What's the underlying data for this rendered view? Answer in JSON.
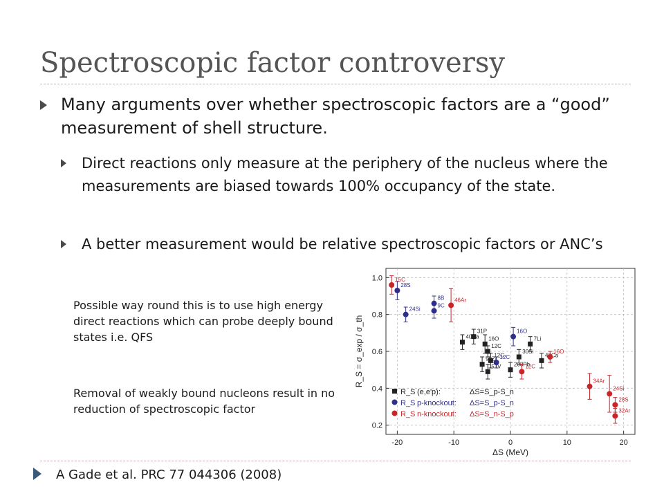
{
  "slide": {
    "title": "Spectroscopic factor controversy",
    "bullet1": "Many arguments over whether spectroscopic factors are a “good” measurement of shell structure.",
    "sub1": "Direct reactions only measure at the periphery of the nucleus where the measurements are biased towards 100% occupancy of the state.",
    "sub2": "A better measurement would be relative spectroscopic factors or ANC’s",
    "note1": "Possible way round this is to use high energy direct reactions which can probe deeply bound states i.e. QFS",
    "note2": "Removal of weakly bound nucleons result in no reduction of spectroscopic factor",
    "reference": "A Gade et al. PRC 77 044306 (2008)"
  },
  "colors": {
    "ee": "#222222",
    "pko": "#2f2f8a",
    "nko": "#c8252b",
    "bullet": "#4a4a4a"
  },
  "chart_data": {
    "type": "scatter",
    "xlabel": "ΔS (MeV)",
    "ylabel": "R_S = σ_exp / σ_th",
    "xlim": [
      -22,
      22
    ],
    "ylim": [
      0.15,
      1.05
    ],
    "xticks": [
      -20,
      -10,
      0,
      10,
      20
    ],
    "xtick_labels": [
      "-20",
      "-10",
      "0",
      "10",
      "20"
    ],
    "yticks": [
      0.2,
      0.4,
      0.6,
      0.8,
      1.0
    ],
    "ytick_labels": [
      "0.2",
      "0.4",
      "0.6",
      "0.8",
      "1.0"
    ],
    "legend": {
      "position": "bottom-left",
      "reaction": "(e,e'p):",
      "entries": [
        {
          "symbol": "R_S",
          "name": "(e,e'p):",
          "delta": "ΔS=S_p-S_n",
          "color": "#222222",
          "marker": "square"
        },
        {
          "symbol": "R_S",
          "name": "p-knockout:",
          "delta": "ΔS=S_p-S_n",
          "color": "#2f2f8a",
          "marker": "circle"
        },
        {
          "symbol": "R_S",
          "name": "n-knockout:",
          "delta": "ΔS=S_n-S_p",
          "color": "#c8252b",
          "marker": "circle"
        }
      ]
    },
    "series": [
      {
        "name": "(e,e'p)",
        "marker": "square",
        "color": "#222222",
        "points": [
          {
            "x": -8.5,
            "y": 0.65,
            "err": 0.04,
            "label": "40Ca"
          },
          {
            "x": -6.5,
            "y": 0.68,
            "err": 0.04,
            "label": "31P"
          },
          {
            "x": -4.5,
            "y": 0.64,
            "err": 0.05,
            "label": "16O"
          },
          {
            "x": -4.0,
            "y": 0.6,
            "err": 0.03,
            "label": "12C"
          },
          {
            "x": -5.0,
            "y": 0.53,
            "err": 0.04,
            "label": "90Zr"
          },
          {
            "x": -3.5,
            "y": 0.55,
            "err": 0.04,
            "label": "12C"
          },
          {
            "x": -4.0,
            "y": 0.49,
            "err": 0.04,
            "label": "51V"
          },
          {
            "x": 0.0,
            "y": 0.5,
            "err": 0.04,
            "label": "208Pb"
          },
          {
            "x": 1.5,
            "y": 0.57,
            "err": 0.04,
            "label": "30Si"
          },
          {
            "x": 3.5,
            "y": 0.64,
            "err": 0.04,
            "label": "7Li"
          },
          {
            "x": 5.5,
            "y": 0.55,
            "err": 0.04,
            "label": "48Ca"
          }
        ]
      },
      {
        "name": "p-knockout",
        "marker": "circle",
        "color": "#2f2f8a",
        "points": [
          {
            "x": -20.0,
            "y": 0.93,
            "err": 0.05,
            "label": "28S"
          },
          {
            "x": -18.5,
            "y": 0.8,
            "err": 0.04,
            "label": "24Si"
          },
          {
            "x": -13.5,
            "y": 0.86,
            "err": 0.04,
            "label": "8B"
          },
          {
            "x": -13.5,
            "y": 0.82,
            "err": 0.04,
            "label": "9C"
          },
          {
            "x": -2.5,
            "y": 0.54,
            "err": 0.03,
            "label": "12C"
          },
          {
            "x": 0.5,
            "y": 0.68,
            "err": 0.05,
            "label": "16O"
          }
        ]
      },
      {
        "name": "n-knockout",
        "marker": "circle",
        "color": "#c8252b",
        "points": [
          {
            "x": -21.0,
            "y": 0.96,
            "err": 0.05,
            "label": "15C"
          },
          {
            "x": -10.5,
            "y": 0.85,
            "err": 0.09,
            "label": "46Ar"
          },
          {
            "x": 7.0,
            "y": 0.57,
            "err": 0.03,
            "label": "16O"
          },
          {
            "x": 2.0,
            "y": 0.49,
            "err": 0.04,
            "label": "12C"
          },
          {
            "x": 14.0,
            "y": 0.41,
            "err": 0.07,
            "label": "34Ar"
          },
          {
            "x": 17.5,
            "y": 0.37,
            "err": 0.1,
            "label": "24Si"
          },
          {
            "x": 18.5,
            "y": 0.31,
            "err": 0.04,
            "label": "28S"
          },
          {
            "x": 18.5,
            "y": 0.25,
            "err": 0.04,
            "label": "32Ar"
          }
        ]
      }
    ]
  }
}
